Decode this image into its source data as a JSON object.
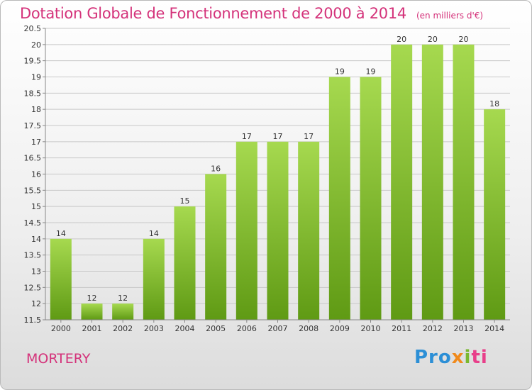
{
  "header": {
    "title": "Dotation Globale de Fonctionnement de 2000 à 2014",
    "unit": "(en milliers d'€)"
  },
  "footer": {
    "commune": "MORTERY",
    "logo_parts": [
      "Pro",
      "x",
      "i",
      "ti"
    ]
  },
  "colors": {
    "title": "#d4327a",
    "bar_light": "#a6d94f",
    "bar_dark": "#5f9a14",
    "grid": "#c8c8c8"
  },
  "chart_data": {
    "type": "bar",
    "categories": [
      "2000",
      "2001",
      "2002",
      "2003",
      "2004",
      "2005",
      "2006",
      "2007",
      "2008",
      "2009",
      "2010",
      "2011",
      "2012",
      "2013",
      "2014"
    ],
    "values": [
      14,
      12,
      12,
      14,
      15,
      16,
      17,
      17,
      17,
      19,
      19,
      20,
      20,
      20,
      18
    ],
    "data_labels": [
      "14",
      "12",
      "12",
      "14",
      "15",
      "16",
      "17",
      "17",
      "17",
      "19",
      "19",
      "20",
      "20",
      "20",
      "18"
    ],
    "ylim": [
      11.5,
      20.5
    ],
    "yticks": [
      11.5,
      12,
      12.5,
      13,
      13.5,
      14,
      14.5,
      15,
      15.5,
      16,
      16.5,
      17,
      17.5,
      18,
      18.5,
      19,
      19.5,
      20,
      20.5
    ],
    "ytick_labels": [
      "11.5",
      "12",
      "12.5",
      "13",
      "13.5",
      "14",
      "14.5",
      "15",
      "15.5",
      "16",
      "16.5",
      "17",
      "17.5",
      "18",
      "18.5",
      "19",
      "19.5",
      "20",
      "20.5"
    ],
    "grid": true,
    "title": "Dotation Globale de Fonctionnement de 2000 à 2014",
    "xlabel": "",
    "ylabel": ""
  }
}
